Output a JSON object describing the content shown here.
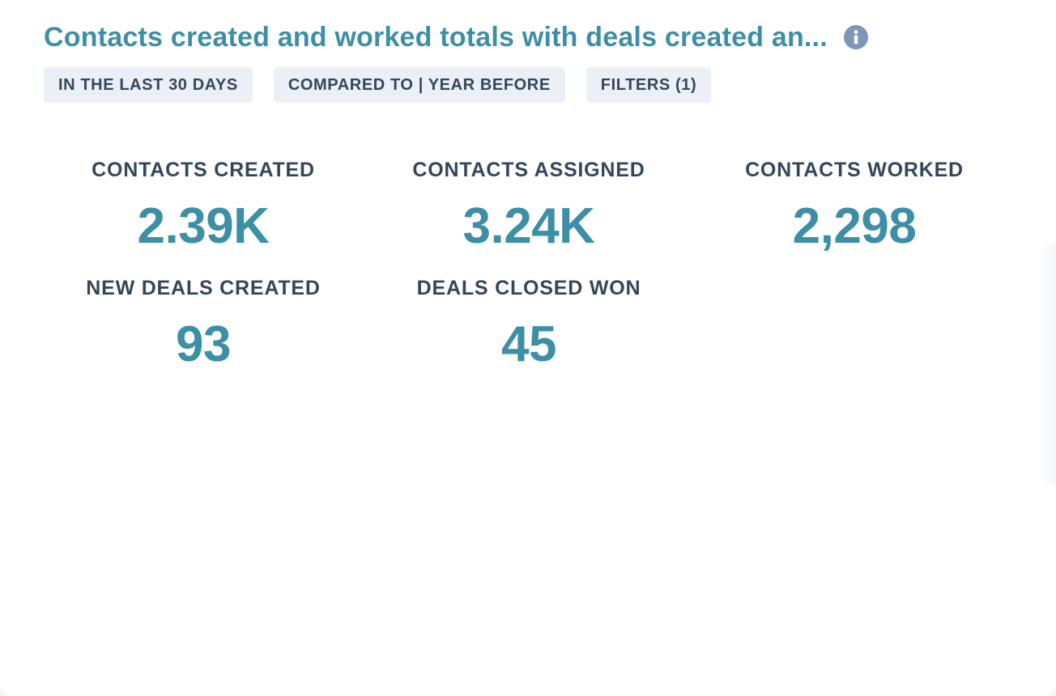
{
  "report": {
    "title": "Contacts created and worked totals with deals created an...",
    "info_icon": "info-icon"
  },
  "chips": {
    "date_range": "IN THE LAST 30 DAYS",
    "compare": "COMPARED TO | YEAR BEFORE",
    "filters": "FILTERS (1)"
  },
  "kpis": [
    {
      "label": "CONTACTS CREATED",
      "value": "2.39K"
    },
    {
      "label": "CONTACTS ASSIGNED",
      "value": "3.24K"
    },
    {
      "label": "CONTACTS WORKED",
      "value": "2,298"
    },
    {
      "label": "NEW DEALS CREATED",
      "value": "93"
    },
    {
      "label": "DEALS CLOSED WON",
      "value": "45"
    }
  ],
  "colors": {
    "accent": "#3d8fa6",
    "text": "#33475b",
    "chip_bg": "#eaf0f6",
    "icon": "#7c98b6"
  }
}
